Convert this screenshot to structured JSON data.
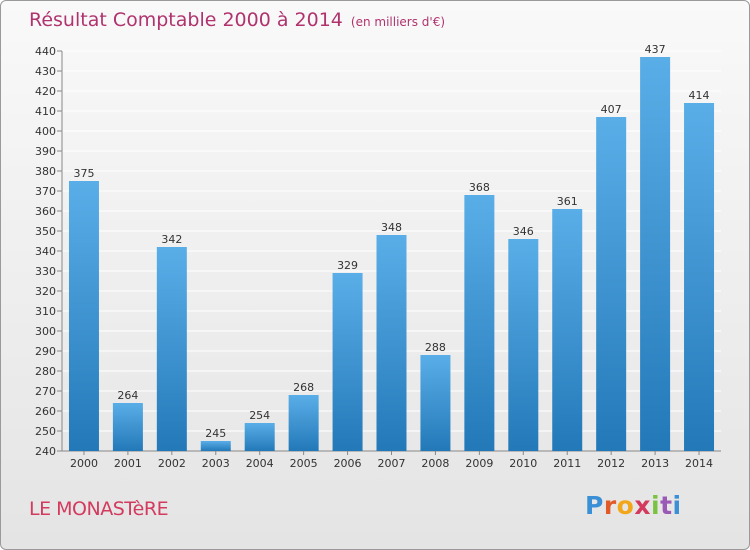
{
  "title": "Résultat Comptable 2000 à 2014",
  "subtitle": "(en milliers d'€)",
  "commune": "LE MONASTèRE",
  "logo": {
    "text": "Proxiti",
    "letters": [
      "P",
      "r",
      "o",
      "x",
      "i",
      "t",
      "i"
    ]
  },
  "colors": {
    "title": "#b0336e",
    "bar_top": "#5aaee8",
    "bar_bottom": "#2379b8",
    "grid": "#ffffff",
    "axis_text": "#333333"
  },
  "chart_data": {
    "type": "bar",
    "title": "Résultat Comptable 2000 à 2014",
    "subtitle": "(en milliers d'€)",
    "categories": [
      "2000",
      "2001",
      "2002",
      "2003",
      "2004",
      "2005",
      "2006",
      "2007",
      "2008",
      "2009",
      "2010",
      "2011",
      "2012",
      "2013",
      "2014"
    ],
    "values": [
      375,
      264,
      342,
      245,
      254,
      268,
      329,
      348,
      288,
      368,
      346,
      361,
      407,
      437,
      414
    ],
    "ylim": [
      240,
      440
    ],
    "yticks": [
      240,
      250,
      260,
      270,
      280,
      290,
      300,
      310,
      320,
      330,
      340,
      350,
      360,
      370,
      380,
      390,
      400,
      410,
      420,
      430,
      440
    ],
    "grid": true
  }
}
